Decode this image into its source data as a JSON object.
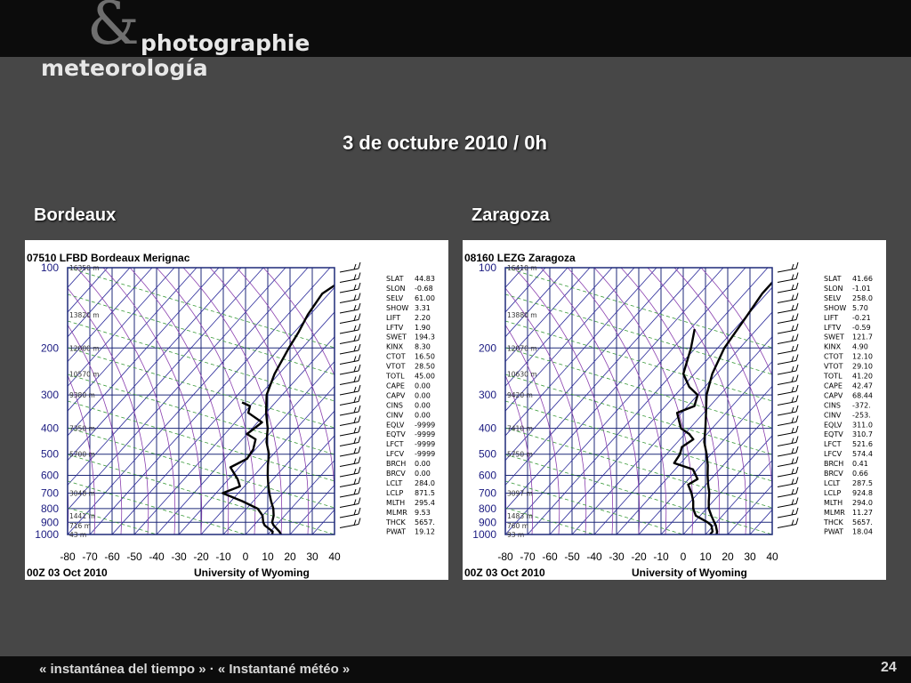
{
  "brand": {
    "amp": "&",
    "photo": "photographie",
    "meteo": "meteorología"
  },
  "title": "3 de octubre 2010 / 0h",
  "footer": "« instantánea del tiempo » · « Instantané météo »",
  "page_number": "24",
  "chart_data": [
    {
      "type": "line",
      "city": "Bordeaux",
      "station": "07510 LFBD Bordeaux Merignac",
      "footer_left": "00Z 03 Oct 2010",
      "footer_right": "University of Wyoming",
      "x_ticks": [
        -80,
        -70,
        -60,
        -50,
        -40,
        -30,
        -20,
        -10,
        0,
        10,
        20,
        30,
        40
      ],
      "xlim": [
        -80,
        40
      ],
      "p_ticks": [
        100,
        200,
        300,
        400,
        500,
        600,
        700,
        800,
        900,
        1000
      ],
      "ylim": [
        100,
        1000
      ],
      "y_scale": "log",
      "heights": [
        {
          "p": 100,
          "label": "16350 m"
        },
        {
          "p": 150,
          "label": "13820 m"
        },
        {
          "p": 200,
          "label": "12000 m"
        },
        {
          "p": 250,
          "label": "10570 m"
        },
        {
          "p": 300,
          "label": "9380 m"
        },
        {
          "p": 400,
          "label": "7350 m"
        },
        {
          "p": 500,
          "label": "5700 m"
        },
        {
          "p": 700,
          "label": "3048 m"
        },
        {
          "p": 850,
          "label": "1441 m"
        },
        {
          "p": 925,
          "label": "716 m"
        },
        {
          "p": 1000,
          "label": "43 m"
        }
      ],
      "series": [
        {
          "values": [
            {
              "p": 100,
              "t": -61
            },
            {
              "p": 110,
              "t": -59
            },
            {
              "p": 125,
              "t": -63
            },
            {
              "p": 150,
              "t": -61
            },
            {
              "p": 175,
              "t": -58
            },
            {
              "p": 200,
              "t": -56
            },
            {
              "p": 250,
              "t": -52
            },
            {
              "p": 300,
              "t": -47
            },
            {
              "p": 350,
              "t": -40
            },
            {
              "p": 400,
              "t": -33
            },
            {
              "p": 450,
              "t": -28
            },
            {
              "p": 500,
              "t": -22
            },
            {
              "p": 550,
              "t": -18
            },
            {
              "p": 600,
              "t": -14
            },
            {
              "p": 650,
              "t": -10
            },
            {
              "p": 700,
              "t": -6
            },
            {
              "p": 750,
              "t": -2
            },
            {
              "p": 800,
              "t": 2
            },
            {
              "p": 850,
              "t": 5
            },
            {
              "p": 900,
              "t": 7
            },
            {
              "p": 925,
              "t": 9
            },
            {
              "p": 975,
              "t": 14
            },
            {
              "p": 1000,
              "t": 16
            }
          ]
        },
        {
          "values": [
            {
              "p": 320,
              "t": -55
            },
            {
              "p": 330,
              "t": -50
            },
            {
              "p": 350,
              "t": -48
            },
            {
              "p": 380,
              "t": -38
            },
            {
              "p": 420,
              "t": -40
            },
            {
              "p": 440,
              "t": -34
            },
            {
              "p": 480,
              "t": -31
            },
            {
              "p": 520,
              "t": -30
            },
            {
              "p": 560,
              "t": -34
            },
            {
              "p": 620,
              "t": -26
            },
            {
              "p": 660,
              "t": -22
            },
            {
              "p": 700,
              "t": -27
            },
            {
              "p": 750,
              "t": -15
            },
            {
              "p": 800,
              "t": -5
            },
            {
              "p": 850,
              "t": 0
            },
            {
              "p": 900,
              "t": 3
            },
            {
              "p": 925,
              "t": 5
            },
            {
              "p": 975,
              "t": 11
            },
            {
              "p": 1000,
              "t": 12
            }
          ]
        }
      ],
      "indices": [
        {
          "k": "SLAT",
          "v": "44.83"
        },
        {
          "k": "SLON",
          "v": "-0.68"
        },
        {
          "k": "SELV",
          "v": "61.00"
        },
        {
          "k": "SHOW",
          "v": "3.31"
        },
        {
          "k": "LIFT",
          "v": "2.20"
        },
        {
          "k": "LFTV",
          "v": "1.90"
        },
        {
          "k": "SWET",
          "v": "194.3"
        },
        {
          "k": "KINX",
          "v": "8.30"
        },
        {
          "k": "CTOT",
          "v": "16.50"
        },
        {
          "k": "VTOT",
          "v": "28.50"
        },
        {
          "k": "TOTL",
          "v": "45.00"
        },
        {
          "k": "CAPE",
          "v": "0.00"
        },
        {
          "k": "CAPV",
          "v": "0.00"
        },
        {
          "k": "CINS",
          "v": "0.00"
        },
        {
          "k": "CINV",
          "v": "0.00"
        },
        {
          "k": "EQLV",
          "v": "-9999"
        },
        {
          "k": "EQTV",
          "v": "-9999"
        },
        {
          "k": "LFCT",
          "v": "-9999"
        },
        {
          "k": "LFCV",
          "v": "-9999"
        },
        {
          "k": "BRCH",
          "v": "0.00"
        },
        {
          "k": "BRCV",
          "v": "0.00"
        },
        {
          "k": "LCLT",
          "v": "284.0"
        },
        {
          "k": "LCLP",
          "v": "871.5"
        },
        {
          "k": "MLTH",
          "v": "295.4"
        },
        {
          "k": "MLMR",
          "v": "9.53"
        },
        {
          "k": "THCK",
          "v": "5657."
        },
        {
          "k": "PWAT",
          "v": "19.12"
        }
      ]
    },
    {
      "type": "line",
      "city": "Zaragoza",
      "station": "08160 LEZG Zaragoza",
      "footer_left": "00Z 03 Oct 2010",
      "footer_right": "University of Wyoming",
      "x_ticks": [
        -80,
        -70,
        -60,
        -50,
        -40,
        -30,
        -20,
        -10,
        0,
        10,
        20,
        30,
        40
      ],
      "xlim": [
        -80,
        40
      ],
      "p_ticks": [
        100,
        200,
        300,
        400,
        500,
        600,
        700,
        800,
        900,
        1000
      ],
      "ylim": [
        100,
        1000
      ],
      "y_scale": "log",
      "heights": [
        {
          "p": 100,
          "label": "16410 m"
        },
        {
          "p": 150,
          "label": "13880 m"
        },
        {
          "p": 200,
          "label": "12070 m"
        },
        {
          "p": 250,
          "label": "10630 m"
        },
        {
          "p": 300,
          "label": "9420 m"
        },
        {
          "p": 400,
          "label": "7410 m"
        },
        {
          "p": 500,
          "label": "5750 m"
        },
        {
          "p": 700,
          "label": "3097 m"
        },
        {
          "p": 850,
          "label": "1483 m"
        },
        {
          "p": 925,
          "label": "760 m"
        },
        {
          "p": 1000,
          "label": "93 m"
        }
      ],
      "series": [
        {
          "values": [
            {
              "p": 100,
              "t": -62
            },
            {
              "p": 125,
              "t": -62
            },
            {
              "p": 150,
              "t": -60
            },
            {
              "p": 200,
              "t": -57
            },
            {
              "p": 250,
              "t": -52
            },
            {
              "p": 300,
              "t": -46
            },
            {
              "p": 350,
              "t": -39
            },
            {
              "p": 400,
              "t": -33
            },
            {
              "p": 450,
              "t": -28
            },
            {
              "p": 500,
              "t": -22
            },
            {
              "p": 550,
              "t": -17
            },
            {
              "p": 600,
              "t": -13
            },
            {
              "p": 650,
              "t": -9
            },
            {
              "p": 700,
              "t": -5
            },
            {
              "p": 750,
              "t": -2
            },
            {
              "p": 800,
              "t": 1
            },
            {
              "p": 850,
              "t": 5
            },
            {
              "p": 900,
              "t": 9
            },
            {
              "p": 925,
              "t": 11
            },
            {
              "p": 975,
              "t": 14
            },
            {
              "p": 1000,
              "t": 15
            }
          ]
        },
        {
          "values": [
            {
              "p": 170,
              "t": -78
            },
            {
              "p": 200,
              "t": -72
            },
            {
              "p": 250,
              "t": -65
            },
            {
              "p": 280,
              "t": -57
            },
            {
              "p": 300,
              "t": -50
            },
            {
              "p": 330,
              "t": -47
            },
            {
              "p": 350,
              "t": -52
            },
            {
              "p": 400,
              "t": -44
            },
            {
              "p": 420,
              "t": -38
            },
            {
              "p": 440,
              "t": -34
            },
            {
              "p": 470,
              "t": -36
            },
            {
              "p": 500,
              "t": -34
            },
            {
              "p": 540,
              "t": -33
            },
            {
              "p": 570,
              "t": -22
            },
            {
              "p": 620,
              "t": -16
            },
            {
              "p": 650,
              "t": -18
            },
            {
              "p": 700,
              "t": -13
            },
            {
              "p": 750,
              "t": -9
            },
            {
              "p": 800,
              "t": -6
            },
            {
              "p": 850,
              "t": -2
            },
            {
              "p": 900,
              "t": 6
            },
            {
              "p": 925,
              "t": 9
            },
            {
              "p": 975,
              "t": 12
            },
            {
              "p": 1000,
              "t": 12
            }
          ]
        }
      ],
      "indices": [
        {
          "k": "SLAT",
          "v": "41.66"
        },
        {
          "k": "SLON",
          "v": "-1.01"
        },
        {
          "k": "SELV",
          "v": "258.0"
        },
        {
          "k": "SHOW",
          "v": "5.70"
        },
        {
          "k": "LIFT",
          "v": "-0.21"
        },
        {
          "k": "LFTV",
          "v": "-0.59"
        },
        {
          "k": "SWET",
          "v": "121.7"
        },
        {
          "k": "KINX",
          "v": "4.90"
        },
        {
          "k": "CTOT",
          "v": "12.10"
        },
        {
          "k": "VTOT",
          "v": "29.10"
        },
        {
          "k": "TOTL",
          "v": "41.20"
        },
        {
          "k": "CAPE",
          "v": "42.47"
        },
        {
          "k": "CAPV",
          "v": "68.44"
        },
        {
          "k": "CINS",
          "v": "-372."
        },
        {
          "k": "CINV",
          "v": "-253."
        },
        {
          "k": "EQLV",
          "v": "311.0"
        },
        {
          "k": "EQTV",
          "v": "310.7"
        },
        {
          "k": "LFCT",
          "v": "521.6"
        },
        {
          "k": "LFCV",
          "v": "574.4"
        },
        {
          "k": "BRCH",
          "v": "0.41"
        },
        {
          "k": "BRCV",
          "v": "0.66"
        },
        {
          "k": "LCLT",
          "v": "287.5"
        },
        {
          "k": "LCLP",
          "v": "924.8"
        },
        {
          "k": "MLTH",
          "v": "294.0"
        },
        {
          "k": "MLMR",
          "v": "11.27"
        },
        {
          "k": "THCK",
          "v": "5657."
        },
        {
          "k": "PWAT",
          "v": "18.04"
        }
      ]
    }
  ]
}
